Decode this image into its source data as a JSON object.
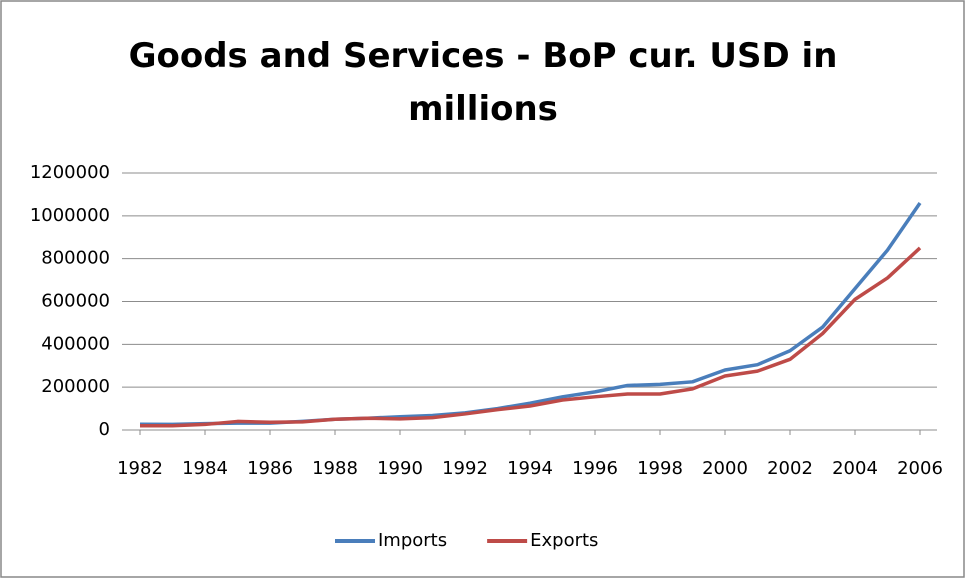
{
  "chart_data": {
    "type": "line",
    "title": "Goods and Services - BoP cur. USD in millions",
    "x": [
      1982,
      1983,
      1984,
      1985,
      1986,
      1987,
      1988,
      1989,
      1990,
      1991,
      1992,
      1993,
      1994,
      1995,
      1996,
      1997,
      1998,
      1999,
      2000,
      2001,
      2002,
      2003,
      2004,
      2005,
      2006
    ],
    "xlim": [
      1982,
      2006
    ],
    "xticks": [
      1982,
      1984,
      1986,
      1988,
      1990,
      1992,
      1994,
      1996,
      1998,
      2000,
      2002,
      2004,
      2006
    ],
    "ylim": [
      0,
      1200000
    ],
    "yticks": [
      0,
      200000,
      400000,
      600000,
      800000,
      1000000,
      1200000
    ],
    "grid": true,
    "legend": "bottom",
    "series": [
      {
        "name": "Imports",
        "color": "#4a7ebb",
        "values": [
          27000,
          26000,
          30000,
          32000,
          32000,
          40000,
          50000,
          55000,
          62000,
          68000,
          80000,
          100000,
          125000,
          155000,
          178000,
          208000,
          213000,
          225000,
          280000,
          305000,
          370000,
          480000,
          660000,
          840000,
          1060000
        ]
      },
      {
        "name": "Exports",
        "color": "#be4b48",
        "values": [
          20000,
          20000,
          26000,
          40000,
          36000,
          38000,
          50000,
          55000,
          52000,
          58000,
          75000,
          95000,
          112000,
          140000,
          155000,
          168000,
          168000,
          192000,
          252000,
          275000,
          330000,
          450000,
          610000,
          710000,
          850000
        ]
      }
    ]
  }
}
